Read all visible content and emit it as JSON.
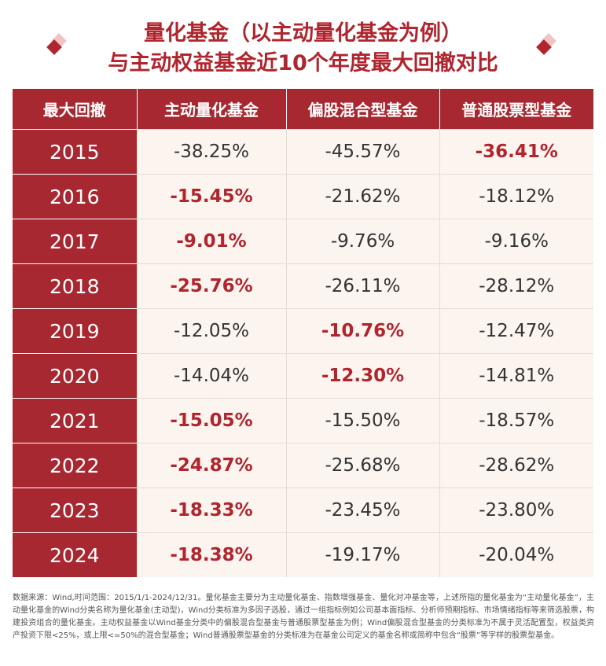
{
  "title": {
    "line1": "量化基金（以主动量化基金为例）",
    "line2": "与主动权益基金近10个年度最大回撤对比"
  },
  "table": {
    "headers": [
      "最大回撤",
      "主动量化基金",
      "偏股混合型基金",
      "普通股票型基金"
    ],
    "rows": [
      {
        "year": "2015",
        "cells": [
          "-38.25%",
          "-45.57%",
          "-36.41%"
        ],
        "highlight": 2
      },
      {
        "year": "2016",
        "cells": [
          "-15.45%",
          "-21.62%",
          "-18.12%"
        ],
        "highlight": 0
      },
      {
        "year": "2017",
        "cells": [
          "-9.01%",
          "-9.76%",
          "-9.16%"
        ],
        "highlight": 0
      },
      {
        "year": "2018",
        "cells": [
          "-25.76%",
          "-26.11%",
          "-28.12%"
        ],
        "highlight": 0
      },
      {
        "year": "2019",
        "cells": [
          "-12.05%",
          "-10.76%",
          "-12.47%"
        ],
        "highlight": 1
      },
      {
        "year": "2020",
        "cells": [
          "-14.04%",
          "-12.30%",
          "-14.81%"
        ],
        "highlight": 1
      },
      {
        "year": "2021",
        "cells": [
          "-15.05%",
          "-15.50%",
          "-18.57%"
        ],
        "highlight": 0
      },
      {
        "year": "2022",
        "cells": [
          "-24.87%",
          "-25.68%",
          "-28.62%"
        ],
        "highlight": 0
      },
      {
        "year": "2023",
        "cells": [
          "-18.33%",
          "-23.45%",
          "-23.80%"
        ],
        "highlight": 0
      },
      {
        "year": "2024",
        "cells": [
          "-18.38%",
          "-19.17%",
          "-20.04%"
        ],
        "highlight": 0
      }
    ]
  },
  "colors": {
    "accent": "#b0252e",
    "header_bg": "#a82831",
    "cell_bg": "#fbf4ef"
  },
  "footnote": "数据来源：Wind,时间范围：2015/1/1-2024/12/31。量化基金主要分为主动量化基金、指数增强基金、量化对冲基金等，上述所指的量化基金为“主动量化基金”，主动量化基金的Wind分类名称为量化基金(主动型)，Wind分类标准为多因子选股，通过一组指标例如公司基本面指标、分析师预期指标、市场情绪指标等来筛选股票，构建投资组合的量化基金。主动权益基金以Wind基金分类中的偏股混合型基金与普通股票型基金为例；Wind偏股混合型基金的分类标准为不属于灵活配置型，权益类资产投资下限<25%，或上限<=50%的混合型基金；Wind普通股票型基金的分类标准为在基金公司定义的基金名称或简称中包含“股票”等字样的股票型基金。"
}
